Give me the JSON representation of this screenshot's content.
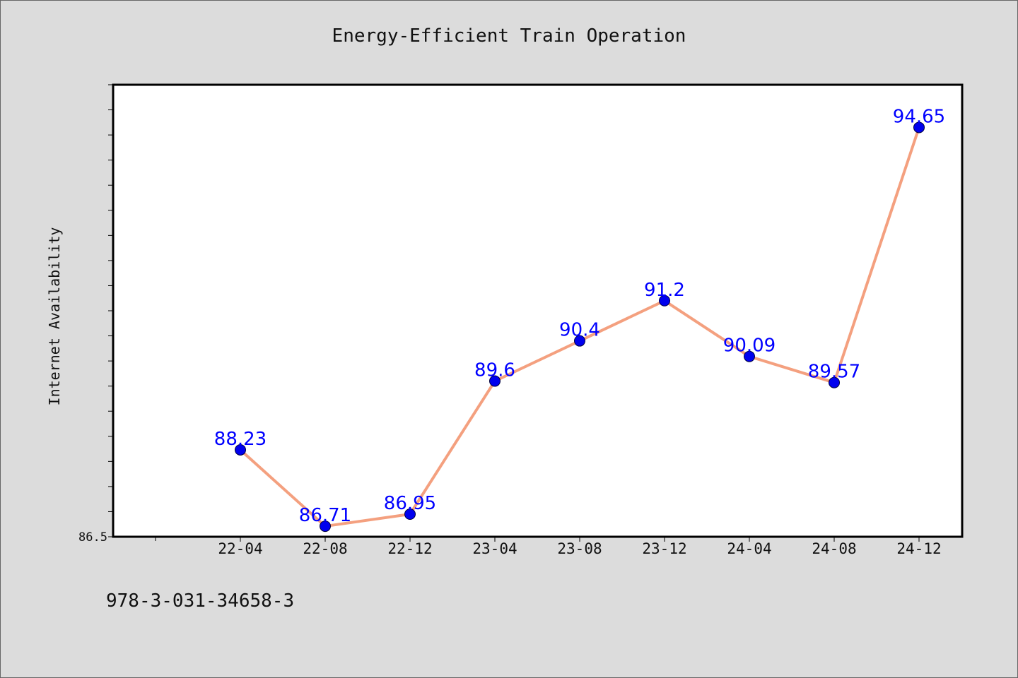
{
  "chart_data": {
    "type": "line",
    "title": "Energy-Efficient Train Operation",
    "xlabel": "",
    "ylabel": "Internet Availability",
    "categories": [
      "22-04",
      "22-08",
      "22-12",
      "23-04",
      "23-08",
      "23-12",
      "24-04",
      "24-08",
      "24-12"
    ],
    "series": [
      {
        "values": [
          88.23,
          86.71,
          86.95,
          89.6,
          90.4,
          91.2,
          90.09,
          89.57,
          94.65
        ],
        "value_labels": [
          "88.23",
          "86.71",
          "86.95",
          "89.6",
          "90.4",
          "91.2",
          "90.09",
          "89.57",
          "94.65"
        ],
        "line_color": "#f4a07f",
        "marker_color": "#0000ee",
        "label_color": "#0000ff"
      }
    ],
    "ylim": [
      86.5,
      95.5
    ],
    "y_tick_label": "86.5",
    "grid": false,
    "legend": "none"
  },
  "footer": {
    "code": "978-3-031-34658-3"
  }
}
